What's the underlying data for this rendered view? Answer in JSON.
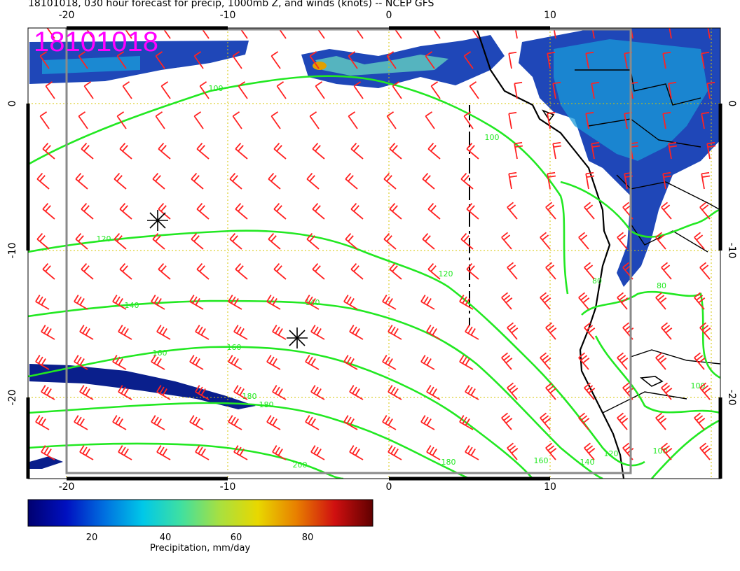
{
  "title": "18101018, 030 hour forecast for precip, 1000mb Z, and winds (knots) -- NCEP GFS",
  "date_stamp": "18101018",
  "map": {
    "lon_ticks": [
      "-20",
      "-10",
      "0",
      "10"
    ],
    "lat_ticks": [
      "0",
      "-10",
      "-20"
    ],
    "contour_color": "#22e822",
    "barb_color": "#ff2222",
    "grid_color": "#d4c400",
    "contour_labels": [
      "100",
      "100",
      "120",
      "120",
      "140",
      "140",
      "160",
      "160",
      "180",
      "180",
      "200",
      "180",
      "160",
      "140",
      "120",
      "100",
      "80",
      "80",
      "100"
    ]
  },
  "colorbar": {
    "label": "Precipitation, mm/day",
    "ticks": [
      "20",
      "40",
      "60",
      "80"
    ],
    "colors": [
      "#000070",
      "#0010c0",
      "#0070e0",
      "#00c8e8",
      "#40e0a0",
      "#a8e040",
      "#e8d800",
      "#e88000",
      "#d01010",
      "#600000"
    ]
  }
}
